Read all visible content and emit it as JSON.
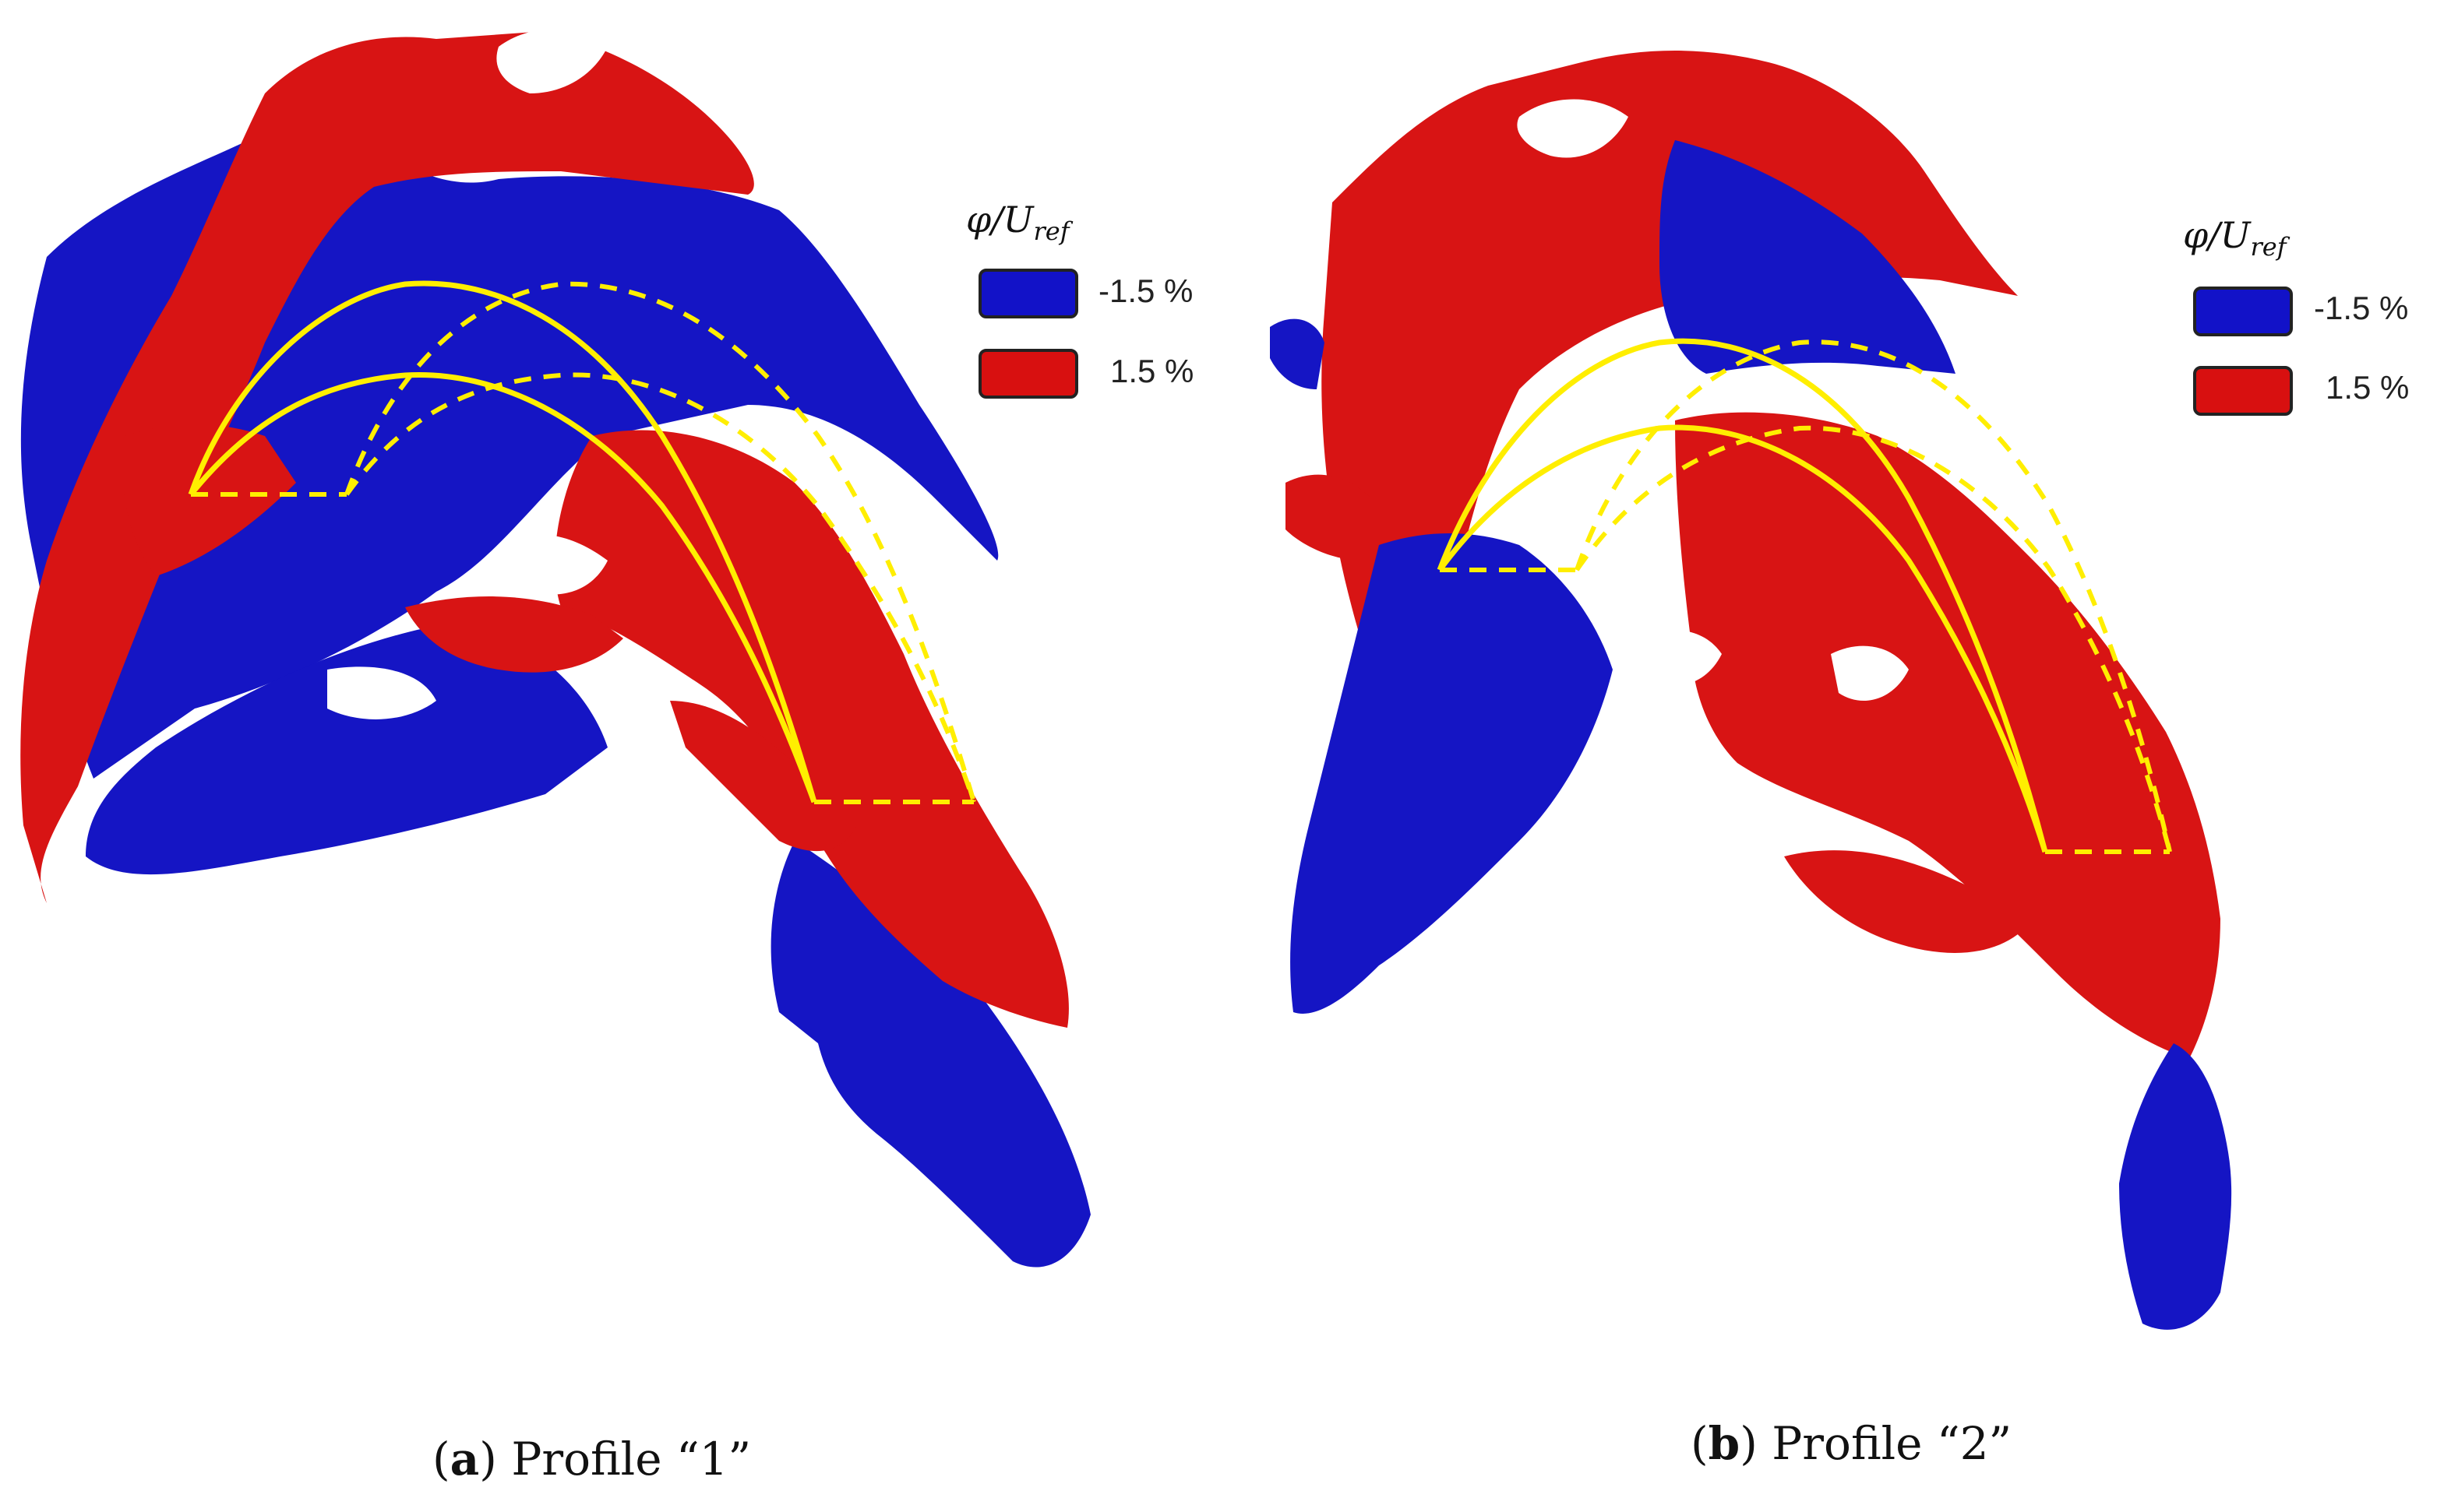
{
  "colors": {
    "negative": "#1212c8",
    "positive": "#d81010",
    "profile_line": "#ffee00"
  },
  "legend": {
    "title_symbol": "φ/U",
    "title_subscript": "ref",
    "items": [
      {
        "label": "-1.5 %",
        "color": "#1212c8"
      },
      {
        "label": "1.5 %",
        "color": "#d81010"
      }
    ]
  },
  "panels": [
    {
      "caption_letter": "a",
      "caption_text": "Profile “1”"
    },
    {
      "caption_letter": "b",
      "caption_text": "Profile “2”"
    }
  ]
}
